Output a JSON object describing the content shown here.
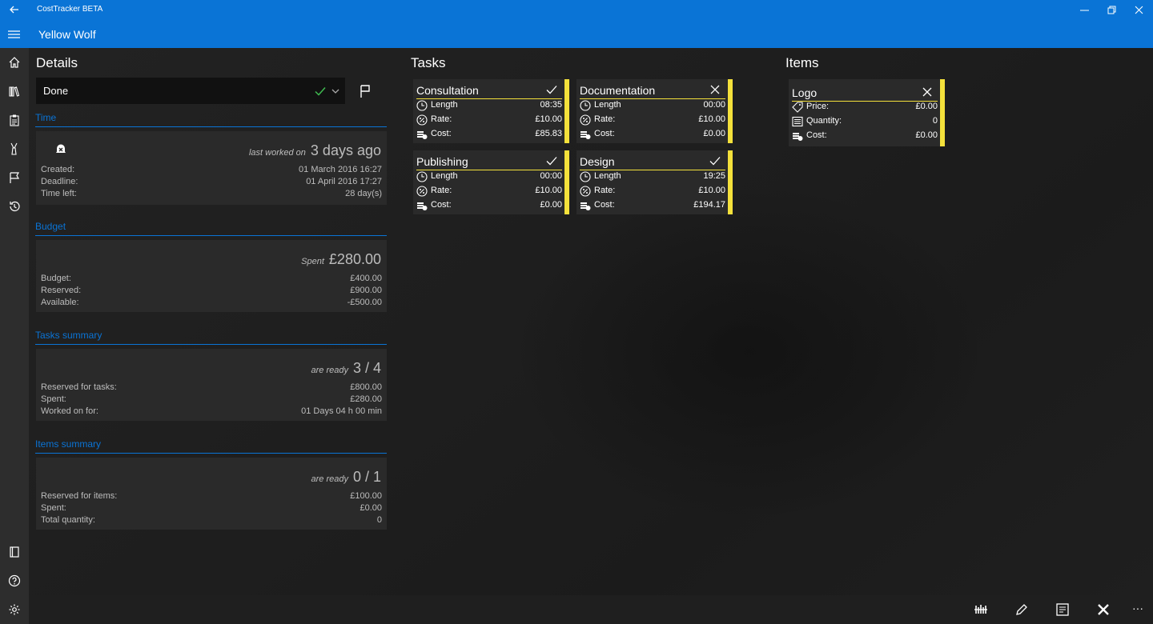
{
  "window": {
    "app_title": "CostTracker BETA"
  },
  "header": {
    "project_title": "Yellow Wolf"
  },
  "details": {
    "title": "Details",
    "status": "Done",
    "time": {
      "heading": "Time",
      "last_worked_label": "last worked on",
      "last_worked_value": "3 days ago",
      "rows": [
        {
          "label": "Created:",
          "value": "01 March 2016 16:27"
        },
        {
          "label": "Deadline:",
          "value": "01 April 2016 17:27"
        },
        {
          "label": "Time left:",
          "value": "28 day(s)"
        }
      ]
    },
    "budget": {
      "heading": "Budget",
      "spent_label": "Spent",
      "spent_value": "£280.00",
      "rows": [
        {
          "label": "Budget:",
          "value": "£400.00"
        },
        {
          "label": "Reserved:",
          "value": "£900.00"
        },
        {
          "label": "Available:",
          "value": "-£500.00"
        }
      ]
    },
    "tasks_summary": {
      "heading": "Tasks summary",
      "ready_label": "are ready",
      "ready_value": "3 / 4",
      "rows": [
        {
          "label": "Reserved for tasks:",
          "value": "£800.00"
        },
        {
          "label": "Spent:",
          "value": "£280.00"
        },
        {
          "label": "Worked on for:",
          "value": "01 Days 04 h 00 min"
        }
      ]
    },
    "items_summary": {
      "heading": "Items summary",
      "ready_label": "are ready",
      "ready_value": "0 / 1",
      "rows": [
        {
          "label": "Reserved for items:",
          "value": "£100.00"
        },
        {
          "label": "Spent:",
          "value": "£0.00"
        },
        {
          "label": "Total quantity:",
          "value": "0"
        }
      ]
    }
  },
  "tasks": {
    "title": "Tasks",
    "labels": {
      "length": "Length",
      "rate": "Rate:",
      "cost": "Cost:"
    },
    "cards": [
      {
        "name": "Consultation",
        "state": "check",
        "length": "08:35",
        "rate": "£10.00",
        "cost": "£85.83"
      },
      {
        "name": "Documentation",
        "state": "close",
        "length": "00:00",
        "rate": "£10.00",
        "cost": "£0.00"
      },
      {
        "name": "Publishing",
        "state": "check",
        "length": "00:00",
        "rate": "£10.00",
        "cost": "£0.00"
      },
      {
        "name": "Design",
        "state": "check",
        "length": "19:25",
        "rate": "£10.00",
        "cost": "£194.17"
      }
    ]
  },
  "items": {
    "title": "Items",
    "labels": {
      "price": "Price:",
      "quantity": "Quantity:",
      "cost": "Cost:"
    },
    "cards": [
      {
        "name": "Logo",
        "state": "close",
        "price": "£0.00",
        "quantity": "0",
        "cost": "£0.00"
      }
    ]
  },
  "colors": {
    "accent": "#0a74d6",
    "stripe": "#f4e13b",
    "done_check": "#3fb950"
  },
  "bottom_bar": {
    "more_label": "···"
  }
}
